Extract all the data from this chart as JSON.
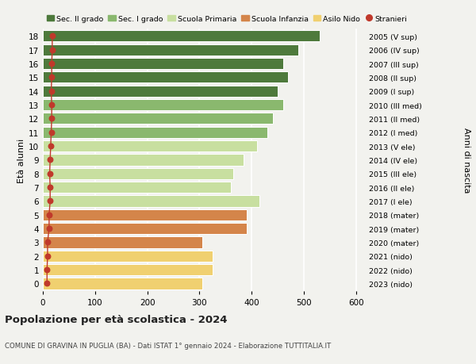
{
  "ages": [
    0,
    1,
    2,
    3,
    4,
    5,
    6,
    7,
    8,
    9,
    10,
    11,
    12,
    13,
    14,
    15,
    16,
    17,
    18
  ],
  "values": [
    305,
    325,
    325,
    305,
    390,
    390,
    415,
    360,
    365,
    385,
    410,
    430,
    440,
    460,
    450,
    470,
    460,
    490,
    530
  ],
  "stranieri": [
    8,
    8,
    9,
    9,
    12,
    12,
    14,
    14,
    13,
    14,
    15,
    16,
    17,
    17,
    16,
    17,
    17,
    18,
    18
  ],
  "right_labels": [
    "2023 (nido)",
    "2022 (nido)",
    "2021 (nido)",
    "2020 (mater)",
    "2019 (mater)",
    "2018 (mater)",
    "2017 (I ele)",
    "2016 (II ele)",
    "2015 (III ele)",
    "2014 (IV ele)",
    "2013 (V ele)",
    "2012 (I med)",
    "2011 (II med)",
    "2010 (III med)",
    "2009 (I sup)",
    "2008 (II sup)",
    "2007 (III sup)",
    "2006 (IV sup)",
    "2005 (V sup)"
  ],
  "bar_colors": [
    "#f0d070",
    "#f0d070",
    "#f0d070",
    "#d4854a",
    "#d4854a",
    "#d4854a",
    "#c8dfa0",
    "#c8dfa0",
    "#c8dfa0",
    "#c8dfa0",
    "#c8dfa0",
    "#8ab86e",
    "#8ab86e",
    "#8ab86e",
    "#4e7a3c",
    "#4e7a3c",
    "#4e7a3c",
    "#4e7a3c",
    "#4e7a3c"
  ],
  "legend_labels": [
    "Sec. II grado",
    "Sec. I grado",
    "Scuola Primaria",
    "Scuola Infanzia",
    "Asilo Nido",
    "Stranieri"
  ],
  "legend_colors": [
    "#4e7a3c",
    "#8ab86e",
    "#c8dfa0",
    "#d4854a",
    "#f0d070",
    "#c0392b"
  ],
  "stranieri_color": "#c0392b",
  "title": "Popolazione per età scolastica - 2024",
  "subtitle": "COMUNE DI GRAVINA IN PUGLIA (BA) - Dati ISTAT 1° gennaio 2024 - Elaborazione TUTTITALIA.IT",
  "ylabel": "Età alunni",
  "right_ylabel": "Anni di nascita",
  "xlabel_ticks": [
    0,
    100,
    200,
    300,
    400,
    500,
    600
  ],
  "xlim": [
    0,
    620
  ],
  "ylim": [
    -0.55,
    18.55
  ],
  "background_color": "#f2f2ee",
  "grid_color": "#ffffff"
}
